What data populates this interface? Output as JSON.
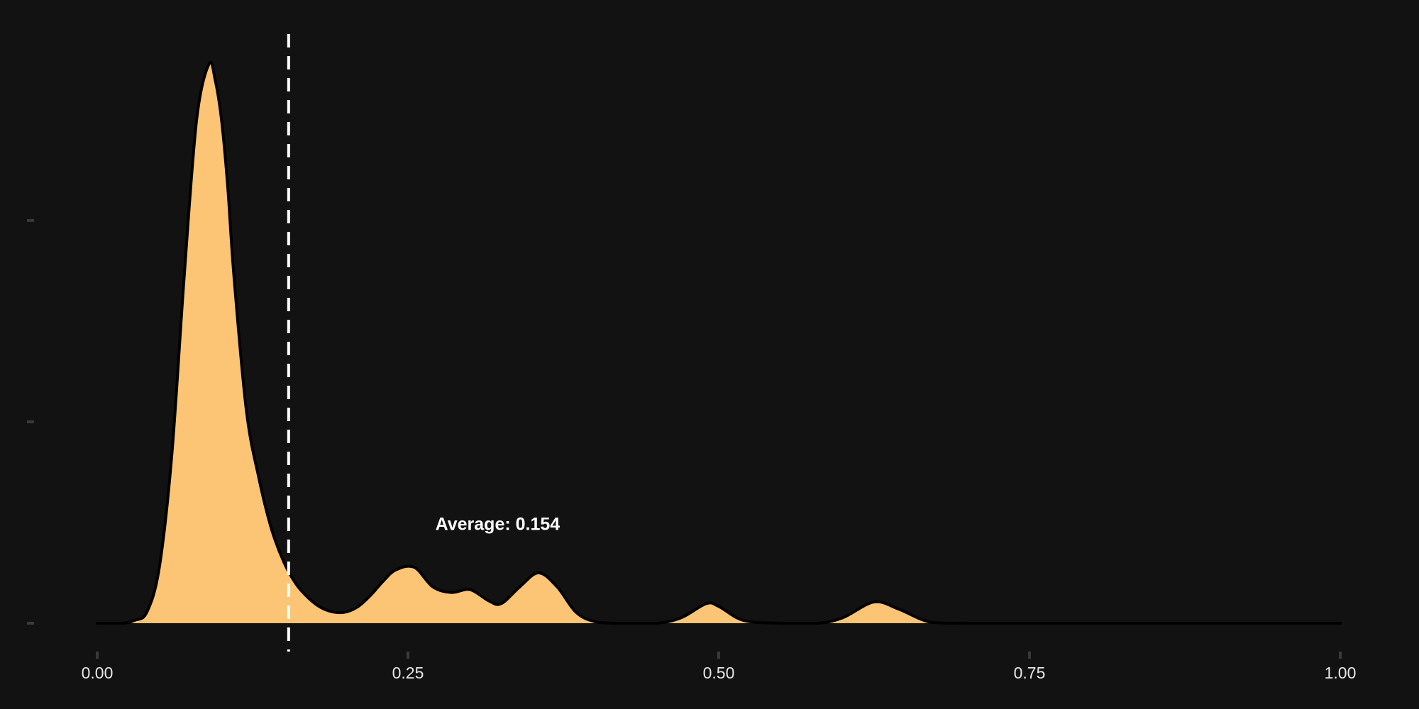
{
  "chart_data": {
    "type": "area",
    "title": "",
    "xlabel": "",
    "ylabel": "",
    "xlim": [
      0,
      1
    ],
    "ylim": [
      0,
      1.05
    ],
    "x_ticks": [
      {
        "value": 0.0,
        "label": "0.00"
      },
      {
        "value": 0.25,
        "label": "0.25"
      },
      {
        "value": 0.5,
        "label": "0.50"
      },
      {
        "value": 0.75,
        "label": "0.75"
      },
      {
        "value": 1.0,
        "label": "1.00"
      }
    ],
    "y_ticks": [
      0,
      0.36,
      0.72
    ],
    "y_tick_labels_visible": false,
    "grid": false,
    "legend": "none",
    "series": [
      {
        "x": [
          0.0,
          0.02,
          0.03,
          0.04,
          0.05,
          0.06,
          0.07,
          0.08,
          0.09,
          0.095,
          0.1,
          0.105,
          0.11,
          0.12,
          0.13,
          0.14,
          0.15,
          0.16,
          0.17,
          0.18,
          0.19,
          0.2,
          0.21,
          0.22,
          0.23,
          0.24,
          0.255,
          0.27,
          0.285,
          0.3,
          0.315,
          0.325,
          0.34,
          0.355,
          0.37,
          0.385,
          0.4,
          0.42,
          0.45,
          0.47,
          0.49,
          0.5,
          0.52,
          0.55,
          0.58,
          0.6,
          0.625,
          0.645,
          0.67,
          0.7,
          0.8,
          0.9,
          1.0
        ],
        "y": [
          0.0,
          0.0,
          0.005,
          0.02,
          0.1,
          0.3,
          0.62,
          0.9,
          1.0,
          0.97,
          0.9,
          0.78,
          0.62,
          0.38,
          0.26,
          0.17,
          0.11,
          0.07,
          0.045,
          0.028,
          0.02,
          0.02,
          0.03,
          0.05,
          0.075,
          0.095,
          0.1,
          0.065,
          0.055,
          0.06,
          0.04,
          0.035,
          0.065,
          0.09,
          0.065,
          0.02,
          0.003,
          0.0,
          0.0,
          0.01,
          0.035,
          0.03,
          0.005,
          0.0,
          0.0,
          0.01,
          0.038,
          0.025,
          0.002,
          0.0,
          0.0,
          0.0,
          0.0
        ]
      }
    ],
    "reference_line": {
      "x": 0.154,
      "style": "dashed"
    },
    "annotation": {
      "text": "Average: 0.154",
      "x": 0.2,
      "y": 0.178
    },
    "colors": {
      "background": "#121212",
      "fill": "#fbc575",
      "stroke": "#000000",
      "reference_line": "#ffffff",
      "tick_mark": "#3a3a3a",
      "tick_label": "#e6e6e6",
      "annotation": "#ffffff"
    }
  }
}
